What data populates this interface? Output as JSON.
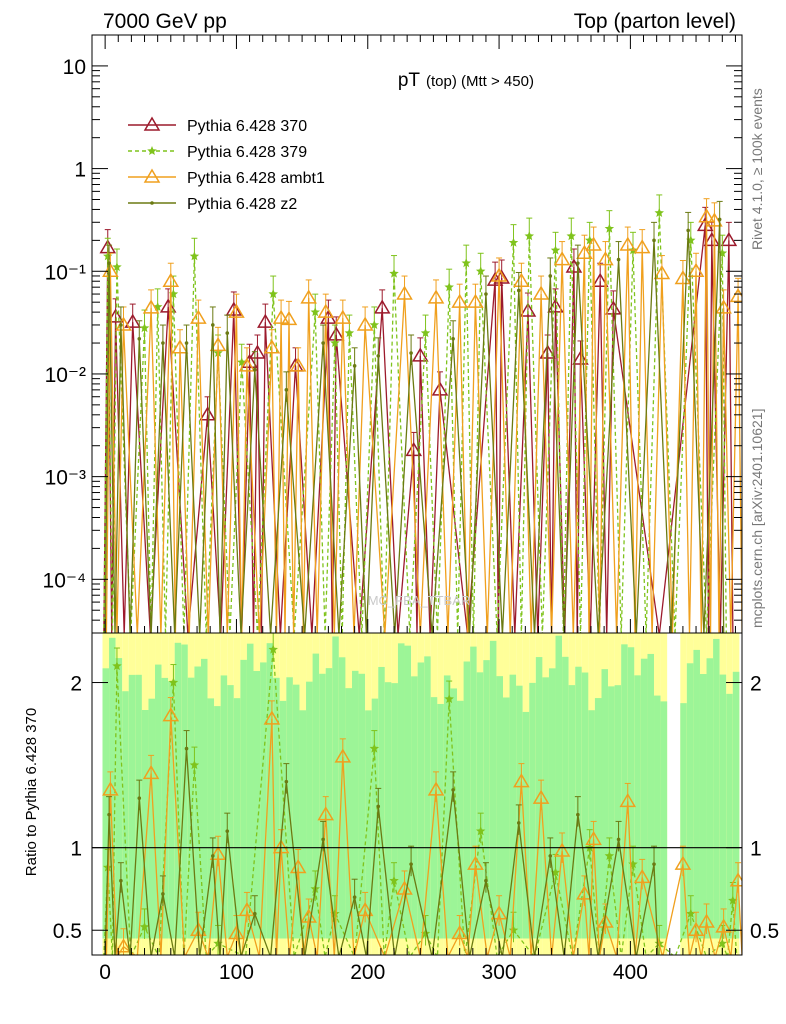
{
  "header": {
    "energy_label": "7000 GeV pp",
    "process_label": "Top (parton level)"
  },
  "side": {
    "rivet_label": "Rivet 4.1.0, ≥ 100k events",
    "source_label": "mcplots.cern.ch [arXiv:2401.10621]"
  },
  "chart_data": {
    "type": "line",
    "title_main": "pT",
    "title_sub": "(top) (Mtt > 450)",
    "watermark": "MC_FBA_TTBAR",
    "xlabel": "",
    "ylabel_ratio": "Ratio to Pythia 6.428 370",
    "xlim": [
      -10,
      485
    ],
    "ylim_main": [
      3e-05,
      20
    ],
    "ylim_ratio": [
      0.35,
      2.3
    ],
    "x_ticks": [
      {
        "value": 0,
        "label": "0"
      },
      {
        "value": 100,
        "label": "100"
      },
      {
        "value": 200,
        "label": "200"
      },
      {
        "value": 300,
        "label": "300"
      },
      {
        "value": 400,
        "label": "400"
      }
    ],
    "y_ticks_main": [
      {
        "value": 10,
        "label": "10"
      },
      {
        "value": 1,
        "label": "1"
      },
      {
        "value": 0.1,
        "label": "10⁻¹"
      },
      {
        "value": 0.01,
        "label": "10⁻²"
      },
      {
        "value": 0.001,
        "label": "10⁻³"
      },
      {
        "value": 0.0001,
        "label": "10⁻⁴"
      }
    ],
    "y_ticks_ratio": [
      {
        "value": 2,
        "label": "2"
      },
      {
        "value": 1,
        "label": "1"
      },
      {
        "value": 0.5,
        "label": "0.5"
      }
    ],
    "legend": [
      {
        "name": "Pythia 6.428 370",
        "color": "#9c1a2c",
        "dash": "",
        "marker": "triangle"
      },
      {
        "name": "Pythia 6.428 379",
        "color": "#7fc31c",
        "dash": "4,3",
        "marker": "star"
      },
      {
        "name": "Pythia 6.428 ambt1",
        "color": "#f0a01e",
        "dash": "",
        "marker": "triangle"
      },
      {
        "name": "Pythia 6.428 z2",
        "color": "#6b7a12",
        "dash": "",
        "marker": "dot"
      }
    ],
    "series": [
      {
        "name": "Pythia 6.428 370",
        "points": [
          [
            2,
            0.17
          ],
          [
            8,
            0.036
          ],
          [
            21,
            0.032
          ],
          [
            48,
            0.045
          ],
          [
            78,
            0.004
          ],
          [
            98,
            0.042
          ],
          [
            110,
            0.013
          ],
          [
            116,
            0.016
          ],
          [
            122,
            0.032
          ],
          [
            145,
            0.012
          ],
          [
            170,
            0.035
          ],
          [
            176,
            0.024
          ],
          [
            211,
            0.044
          ],
          [
            235,
            0.0018
          ],
          [
            240,
            0.015
          ],
          [
            255,
            0.007
          ],
          [
            297,
            0.082
          ],
          [
            302,
            0.086
          ],
          [
            322,
            0.041
          ],
          [
            337,
            0.016
          ],
          [
            343,
            0.045
          ],
          [
            357,
            0.11
          ],
          [
            362,
            0.014
          ],
          [
            377,
            0.08
          ],
          [
            387,
            0.043
          ],
          [
            457,
            0.28
          ],
          [
            462,
            0.2
          ],
          [
            475,
            0.2
          ]
        ]
      },
      {
        "name": "Pythia 6.428 379",
        "points": [
          [
            2,
            0.14
          ],
          [
            9,
            0.11
          ],
          [
            30,
            0.028
          ],
          [
            40,
            0.045
          ],
          [
            52,
            0.06
          ],
          [
            68,
            0.14
          ],
          [
            86,
            0.016
          ],
          [
            104,
            0.013
          ],
          [
            128,
            0.06
          ],
          [
            160,
            0.04
          ],
          [
            175,
            0.02
          ],
          [
            186,
            0.025
          ],
          [
            205,
            0.03
          ],
          [
            220,
            0.095
          ],
          [
            244,
            0.025
          ],
          [
            262,
            0.07
          ],
          [
            275,
            0.12
          ],
          [
            286,
            0.1
          ],
          [
            311,
            0.19
          ],
          [
            323,
            0.22
          ],
          [
            343,
            0.16
          ],
          [
            355,
            0.22
          ],
          [
            369,
            0.2
          ],
          [
            384,
            0.26
          ],
          [
            402,
            0.16
          ],
          [
            422,
            0.37
          ],
          [
            446,
            0.2
          ],
          [
            470,
            0.15
          ]
        ]
      },
      {
        "name": "Pythia 6.428 ambt1",
        "points": [
          [
            4,
            0.1
          ],
          [
            14,
            0.03
          ],
          [
            35,
            0.044
          ],
          [
            50,
            0.08
          ],
          [
            57,
            0.018
          ],
          [
            71,
            0.035
          ],
          [
            86,
            0.019
          ],
          [
            100,
            0.04
          ],
          [
            108,
            0.012
          ],
          [
            127,
            0.018
          ],
          [
            134,
            0.035
          ],
          [
            140,
            0.034
          ],
          [
            147,
            0.012
          ],
          [
            155,
            0.055
          ],
          [
            168,
            0.04
          ],
          [
            181,
            0.035
          ],
          [
            198,
            0.03
          ],
          [
            228,
            0.06
          ],
          [
            252,
            0.055
          ],
          [
            270,
            0.05
          ],
          [
            282,
            0.05
          ],
          [
            300,
            0.09
          ],
          [
            317,
            0.08
          ],
          [
            332,
            0.06
          ],
          [
            348,
            0.13
          ],
          [
            365,
            0.15
          ],
          [
            372,
            0.18
          ],
          [
            381,
            0.13
          ],
          [
            398,
            0.18
          ],
          [
            409,
            0.17
          ],
          [
            424,
            0.095
          ],
          [
            440,
            0.085
          ],
          [
            450,
            0.1
          ],
          [
            458,
            0.34
          ],
          [
            464,
            0.31
          ],
          [
            471,
            0.044
          ],
          [
            482,
            0.057
          ]
        ]
      },
      {
        "name": "Pythia 6.428 z2",
        "points": [
          [
            3,
            0.12
          ],
          [
            12,
            0.03
          ],
          [
            26,
            0.022
          ],
          [
            44,
            0.02
          ],
          [
            62,
            0.02
          ],
          [
            82,
            0.03
          ],
          [
            93,
            0.025
          ],
          [
            114,
            0.011
          ],
          [
            138,
            0.007
          ],
          [
            166,
            0.02
          ],
          [
            190,
            0.012
          ],
          [
            208,
            0.015
          ],
          [
            233,
            0.016
          ],
          [
            265,
            0.022
          ],
          [
            290,
            0.06
          ],
          [
            315,
            0.065
          ],
          [
            339,
            0.09
          ],
          [
            360,
            0.12
          ],
          [
            391,
            0.13
          ],
          [
            418,
            0.2
          ],
          [
            444,
            0.25
          ],
          [
            468,
            0.32
          ]
        ]
      }
    ],
    "ratio_series": [
      {
        "name": "Pythia 6.428 379",
        "points": [
          [
            2,
            0.88
          ],
          [
            9,
            2.1
          ],
          [
            30,
            0.52
          ],
          [
            52,
            2.0
          ],
          [
            68,
            1.5
          ],
          [
            86,
            0.42
          ],
          [
            128,
            2.2
          ],
          [
            160,
            0.75
          ],
          [
            175,
            0.6
          ],
          [
            205,
            1.6
          ],
          [
            220,
            0.8
          ],
          [
            244,
            0.48
          ],
          [
            262,
            1.9
          ],
          [
            286,
            1.1
          ],
          [
            311,
            0.5
          ],
          [
            343,
            0.85
          ],
          [
            369,
            1.0
          ],
          [
            384,
            0.95
          ],
          [
            402,
            0.9
          ],
          [
            422,
            0.42
          ],
          [
            446,
            0.6
          ],
          [
            470,
            0.42
          ],
          [
            478,
            0.68
          ]
        ]
      },
      {
        "name": "Pythia 6.428 ambt1",
        "points": [
          [
            4,
            1.35
          ],
          [
            14,
            0.4
          ],
          [
            35,
            1.45
          ],
          [
            50,
            1.8
          ],
          [
            71,
            0.5
          ],
          [
            86,
            0.96
          ],
          [
            100,
            0.48
          ],
          [
            108,
            0.62
          ],
          [
            127,
            1.78
          ],
          [
            134,
            1.0
          ],
          [
            147,
            0.88
          ],
          [
            155,
            0.58
          ],
          [
            168,
            1.2
          ],
          [
            181,
            1.55
          ],
          [
            198,
            0.62
          ],
          [
            228,
            0.75
          ],
          [
            252,
            1.35
          ],
          [
            270,
            0.48
          ],
          [
            282,
            0.9
          ],
          [
            300,
            0.6
          ],
          [
            317,
            1.4
          ],
          [
            332,
            1.3
          ],
          [
            348,
            0.98
          ],
          [
            365,
            0.72
          ],
          [
            372,
            1.05
          ],
          [
            381,
            0.55
          ],
          [
            398,
            1.28
          ],
          [
            409,
            0.82
          ],
          [
            440,
            0.9
          ],
          [
            450,
            0.5
          ],
          [
            458,
            0.55
          ],
          [
            471,
            0.52
          ],
          [
            482,
            0.8
          ]
        ]
      },
      {
        "name": "Pythia 6.428 z2",
        "points": [
          [
            3,
            1.2
          ],
          [
            12,
            0.8
          ],
          [
            26,
            1.3
          ],
          [
            44,
            0.72
          ],
          [
            62,
            1.6
          ],
          [
            82,
            0.95
          ],
          [
            93,
            1.1
          ],
          [
            114,
            0.6
          ],
          [
            138,
            1.4
          ],
          [
            166,
            1.05
          ],
          [
            190,
            0.7
          ],
          [
            208,
            1.25
          ],
          [
            233,
            0.9
          ],
          [
            265,
            1.35
          ],
          [
            290,
            0.8
          ],
          [
            315,
            1.15
          ],
          [
            339,
            0.95
          ],
          [
            360,
            1.2
          ],
          [
            391,
            1.05
          ],
          [
            418,
            0.9
          ]
        ]
      }
    ]
  }
}
